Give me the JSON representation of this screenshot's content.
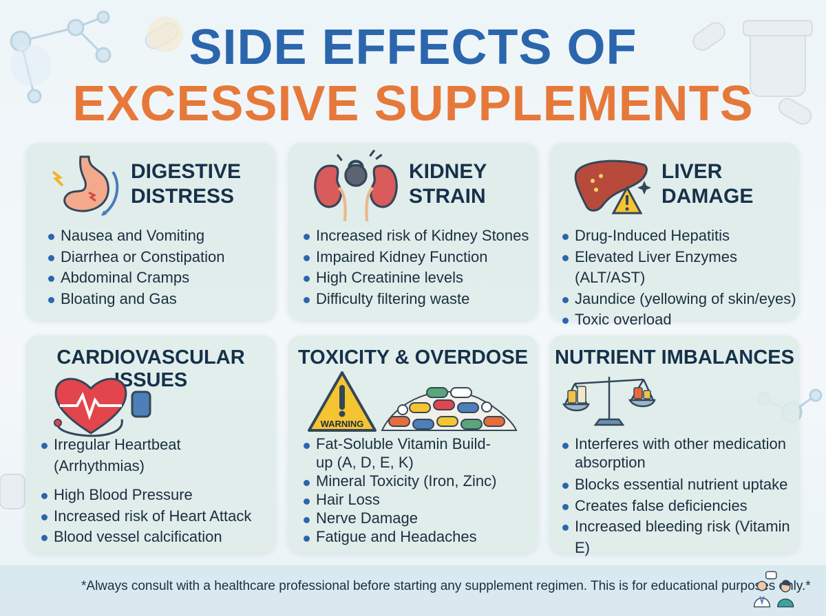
{
  "title": {
    "line1": "SIDE EFFECTS OF",
    "line2": "EXCESSIVE SUPPLEMENTS"
  },
  "colors": {
    "title_blue": "#2b66ad",
    "title_orange": "#e6793a",
    "card_bg": "#deece8",
    "bullet": "#2b66ad"
  },
  "cards": [
    {
      "heading": [
        "DIGESTIVE",
        "DISTRESS"
      ],
      "icon": "stomach-icon",
      "items": [
        "Nausea and Vomiting",
        "Diarrhea or Constipation",
        "Abdominal Cramps",
        "Bloating and Gas"
      ]
    },
    {
      "heading": [
        "KIDNEY",
        "STRAIN"
      ],
      "icon": "kidneys-kettlebell-icon",
      "items": [
        "Increased risk of Kidney Stones",
        "Impaired Kidney Function",
        "High Creatinine levels",
        "Difficulty filtering waste"
      ]
    },
    {
      "heading": [
        "LIVER",
        "DAMAGE"
      ],
      "icon": "liver-warning-icon",
      "items": [
        "Drug-Induced Hepatitis",
        "Elevated Liver Enzymes (ALT/AST)",
        "Jaundice (yellowing of skin/eyes)",
        "Toxic overload"
      ]
    },
    {
      "heading": "CARDIOVASCULAR ISSUES",
      "icon": "heart-blood-pressure-icon",
      "items": [
        "Irregular Heartbeat (Arrhythmias)",
        "High Blood Pressure",
        "Increased risk of Heart Attack",
        "Blood vessel calcification"
      ]
    },
    {
      "heading": "TOXICITY & OVERDOSE",
      "icon": "warning-pills-icon",
      "warning_label": "WARNING",
      "items": [
        "Fat-Soluble Vitamin Build-up (A, D, E, K)",
        "Mineral Toxicity (Iron, Zinc)",
        "Hair Loss",
        "Nerve Damage",
        "Fatigue and Headaches"
      ]
    },
    {
      "heading": "NUTRIENT IMBALANCES",
      "icon": "balance-scale-icon",
      "items": [
        "Interferes with other medication absorption",
        "Blocks essential nutrient uptake",
        "Creates false deficiencies",
        "Increased bleeding risk (Vitamin E)"
      ]
    }
  ],
  "footer": {
    "note": "*Always consult with a healthcare professional before starting any supplement regimen. This is for educational purposes only.*",
    "icon": "doctor-patient-icon"
  }
}
